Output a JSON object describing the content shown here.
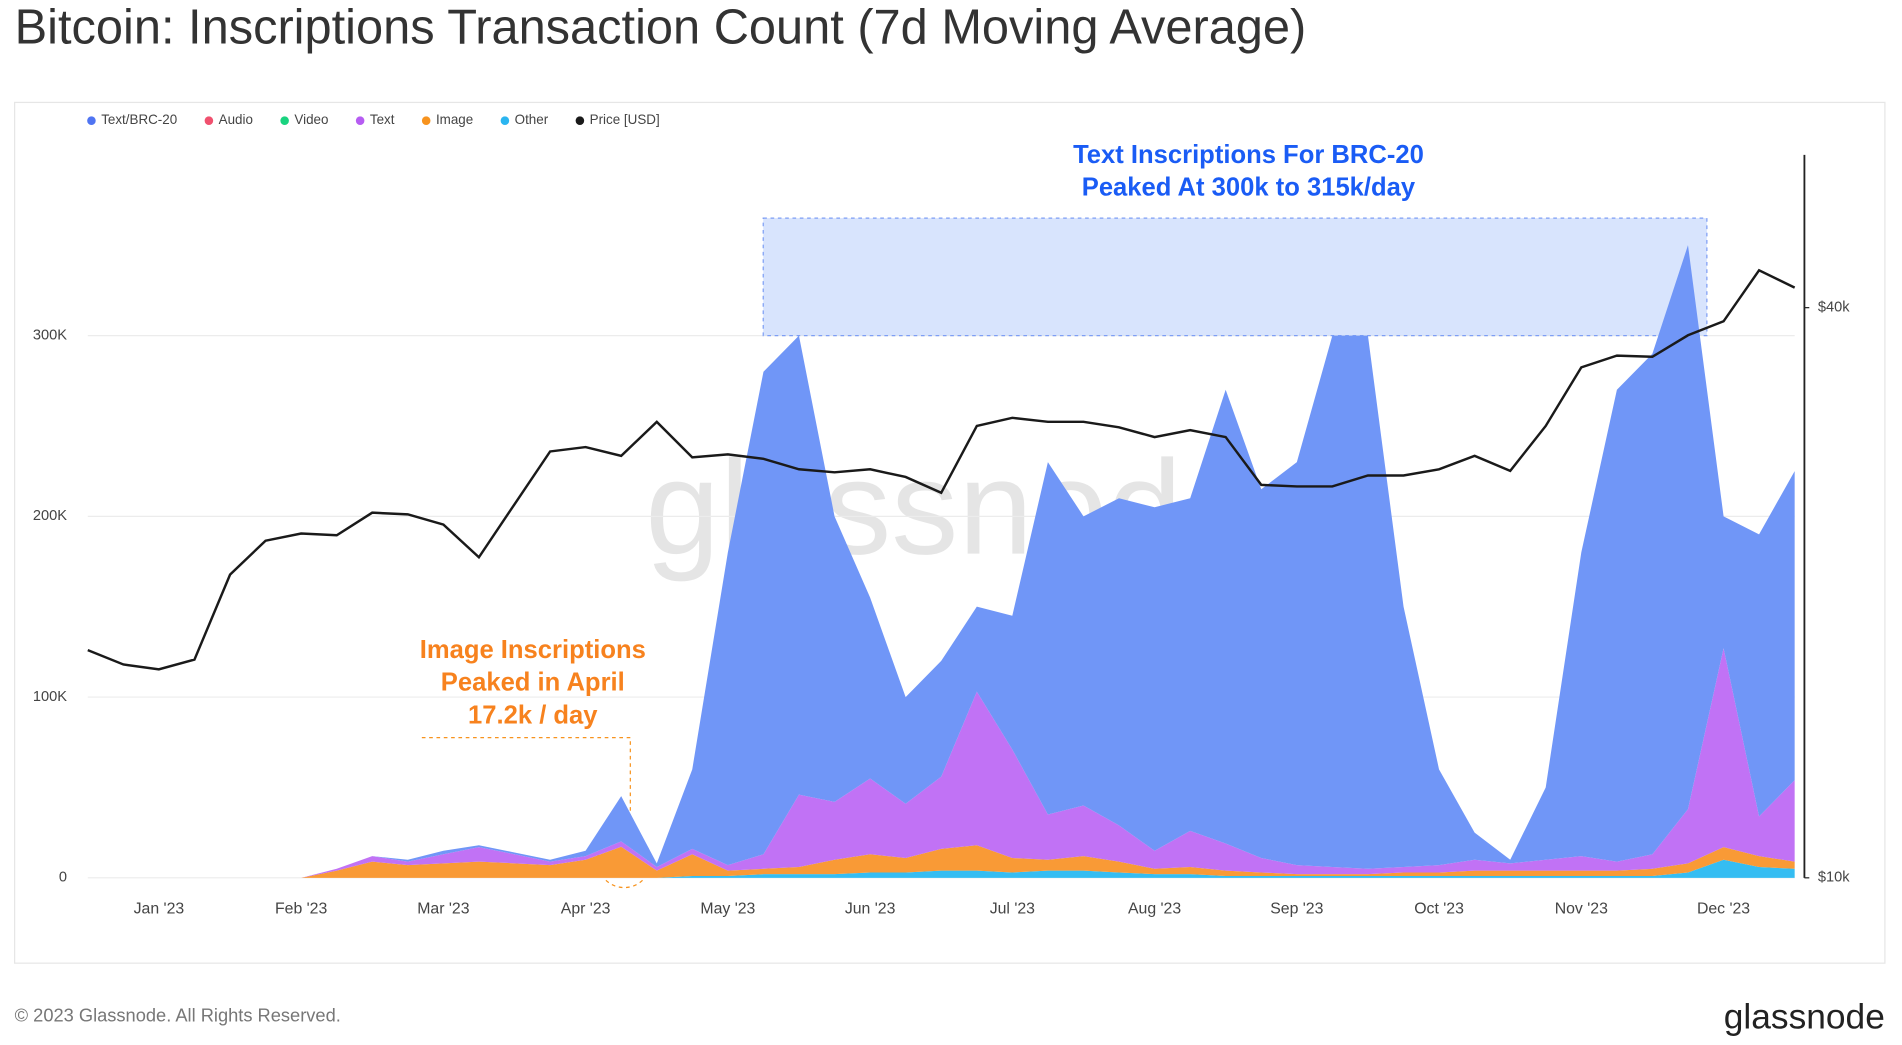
{
  "chart_data": {
    "type": "area",
    "stacked": true,
    "title": "Bitcoin: Inscriptions Transaction Count (7d Moving Average)",
    "watermark": "glassnode",
    "footer": "© 2023 Glassnode. All Rights Reserved.",
    "logo": "glassnode",
    "categories": [
      null,
      null,
      "Jan '23",
      null,
      null,
      null,
      "Feb '23",
      null,
      null,
      null,
      "Mar '23",
      null,
      null,
      null,
      "Apr '23",
      null,
      null,
      null,
      "May '23",
      null,
      null,
      null,
      "Jun '23",
      null,
      null,
      null,
      "Jul '23",
      null,
      null,
      null,
      "Aug '23",
      null,
      null,
      null,
      "Sep '23",
      null,
      null,
      null,
      "Oct '23",
      null,
      null,
      null,
      "Nov '23",
      null,
      null,
      null,
      "Dec '23",
      null,
      null
    ],
    "ylim": [
      0,
      400000
    ],
    "yticks": [
      0,
      {
        "value": 100000,
        "label": "100K"
      },
      {
        "value": 200000,
        "label": "200K"
      },
      {
        "value": 300000,
        "label": "300K"
      }
    ],
    "y2lim": [
      10000,
      58000
    ],
    "y2log": true,
    "y2ticks": [
      {
        "value": 10000,
        "label": "$10k"
      },
      {
        "value": 40000,
        "label": "$40k"
      }
    ],
    "grid": true,
    "series": [
      {
        "name": "Text/BRC-20",
        "color": "#4f74f2",
        "fill": "#7096f7",
        "values": [
          0,
          0,
          0,
          0,
          0,
          0,
          0,
          0,
          0,
          1000,
          2000,
          1000,
          1000,
          1000,
          3000,
          25000,
          2000,
          44000,
          173000,
          267000,
          254000,
          158000,
          100000,
          59000,
          64000,
          47000,
          74000,
          195000,
          160000,
          181000,
          190000,
          184000,
          251000,
          204000,
          223000,
          294000,
          295000,
          144000,
          53000,
          15000,
          2000,
          40000,
          168000,
          261000,
          277000,
          312000,
          73000,
          156000,
          171000
        ]
      },
      {
        "name": "Audio",
        "color": "#f0506e",
        "fill": "#f0506e",
        "values": [
          0,
          0,
          0,
          0,
          0,
          0,
          0,
          0,
          0,
          0,
          0,
          0,
          0,
          0,
          0,
          0,
          0,
          0,
          0,
          0,
          0,
          0,
          0,
          0,
          0,
          0,
          0,
          0,
          0,
          0,
          0,
          0,
          0,
          0,
          0,
          0,
          0,
          0,
          0,
          0,
          0,
          0,
          0,
          0,
          0,
          0,
          0,
          0,
          0
        ]
      },
      {
        "name": "Video",
        "color": "#19d37f",
        "fill": "#19d37f",
        "values": [
          0,
          0,
          0,
          0,
          0,
          0,
          0,
          0,
          0,
          0,
          0,
          0,
          0,
          0,
          0,
          0,
          0,
          0,
          0,
          0,
          0,
          0,
          0,
          0,
          0,
          0,
          0,
          0,
          0,
          0,
          0,
          0,
          0,
          0,
          0,
          0,
          0,
          0,
          0,
          0,
          0,
          0,
          0,
          0,
          0,
          0,
          0,
          0,
          0
        ]
      },
      {
        "name": "Text",
        "color": "#b65cf2",
        "fill": "#c172f5",
        "values": [
          0,
          0,
          0,
          0,
          0,
          0,
          0,
          1000,
          3000,
          2000,
          5000,
          8000,
          5000,
          2000,
          2000,
          3000,
          2000,
          3000,
          3000,
          8000,
          40000,
          32000,
          42000,
          30000,
          40000,
          85000,
          60000,
          25000,
          28000,
          20000,
          10000,
          20000,
          15000,
          8000,
          5000,
          4000,
          3000,
          3000,
          4000,
          6000,
          4000,
          6000,
          8000,
          5000,
          8000,
          30000,
          110000,
          22000,
          45000
        ]
      },
      {
        "name": "Image",
        "color": "#f7931e",
        "fill": "#f99a36",
        "values": [
          0,
          0,
          0,
          0,
          0,
          0,
          0,
          4000,
          9000,
          7000,
          8000,
          9000,
          8000,
          7000,
          10000,
          17200,
          4000,
          12000,
          3000,
          3000,
          4000,
          8000,
          10000,
          8000,
          12000,
          14000,
          8000,
          6000,
          8000,
          6000,
          3000,
          4000,
          3000,
          2000,
          1000,
          1000,
          1000,
          2000,
          2000,
          3000,
          3000,
          3000,
          3000,
          3000,
          4000,
          5000,
          7000,
          6000,
          4000
        ]
      },
      {
        "name": "Other",
        "color": "#2bb5f0",
        "fill": "#35bdf2",
        "values": [
          0,
          0,
          0,
          0,
          0,
          0,
          0,
          0,
          0,
          0,
          0,
          0,
          0,
          0,
          0,
          0,
          0,
          1000,
          1000,
          2000,
          2000,
          2000,
          3000,
          3000,
          4000,
          4000,
          3000,
          4000,
          4000,
          3000,
          2000,
          2000,
          1000,
          1000,
          1000,
          1000,
          1000,
          1000,
          1000,
          1000,
          1000,
          1000,
          1000,
          1000,
          1000,
          3000,
          10000,
          6000,
          5000
        ]
      },
      {
        "name": "Price [USD]",
        "type": "line",
        "axis": "y2",
        "color": "#1a1a1a",
        "values": [
          17400,
          16800,
          16600,
          17000,
          20900,
          22700,
          23100,
          23000,
          24300,
          24200,
          23600,
          21800,
          24800,
          28200,
          28500,
          27900,
          30300,
          27800,
          28000,
          27700,
          27000,
          26800,
          27000,
          26500,
          25500,
          30000,
          30600,
          30300,
          30300,
          29900,
          29200,
          29700,
          29200,
          26000,
          25900,
          25900,
          26600,
          26600,
          27000,
          27900,
          26900,
          30000,
          34600,
          35600,
          35500,
          37400,
          38700,
          43800,
          42000
        ]
      }
    ],
    "annotations": [
      {
        "lines": [
          "Image Inscriptions",
          "Peaked in April",
          "17.2k / day"
        ],
        "color": "#f7821e"
      },
      {
        "lines": [
          "Text Inscriptions For BRC-20",
          "Peaked At 300k to 315k/day"
        ],
        "color": "#1a5cf5",
        "highlight_ylim": [
          300000,
          365000
        ]
      }
    ]
  }
}
